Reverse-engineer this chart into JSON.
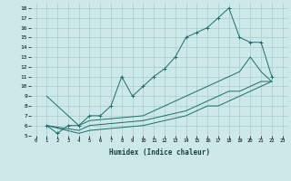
{
  "xlabel": "Humidex (Indice chaleur)",
  "background_color": "#cce8e8",
  "grid_color": "#aacccc",
  "line_color": "#1a6e6a",
  "xlim": [
    -0.5,
    23.5
  ],
  "ylim": [
    5,
    18.5
  ],
  "xticks": [
    0,
    1,
    2,
    3,
    4,
    5,
    6,
    7,
    8,
    9,
    10,
    11,
    12,
    13,
    14,
    15,
    16,
    17,
    18,
    19,
    20,
    21,
    22,
    23
  ],
  "yticks": [
    5,
    6,
    7,
    8,
    9,
    10,
    11,
    12,
    13,
    14,
    15,
    16,
    17,
    18
  ],
  "lines": [
    {
      "x": [
        1,
        2,
        3,
        4,
        5,
        6,
        7,
        8,
        9,
        10,
        11,
        12,
        13,
        14,
        15,
        16,
        17,
        18,
        19,
        20,
        21,
        22
      ],
      "y": [
        6,
        5.2,
        6,
        6,
        7,
        7,
        8,
        11,
        9,
        10,
        11,
        11.8,
        13,
        15,
        15.5,
        16,
        17,
        18,
        15,
        14.5,
        14.5,
        11
      ],
      "marker": true
    },
    {
      "x": [
        1,
        4,
        5,
        10,
        14,
        15,
        16,
        17,
        18,
        19,
        20,
        21,
        22
      ],
      "y": [
        9,
        6,
        6.5,
        7,
        9,
        9.5,
        10,
        10.5,
        11,
        11.5,
        13,
        11.5,
        10.5
      ],
      "marker": false
    },
    {
      "x": [
        1,
        4,
        5,
        10,
        14,
        15,
        16,
        17,
        18,
        19,
        20,
        21,
        22
      ],
      "y": [
        6,
        5.5,
        6,
        6.5,
        7.5,
        8,
        8.5,
        9,
        9.5,
        9.5,
        10,
        10.5,
        10.5
      ],
      "marker": false
    },
    {
      "x": [
        1,
        4,
        5,
        10,
        14,
        15,
        16,
        17,
        18,
        19,
        20,
        21,
        22
      ],
      "y": [
        6,
        5.2,
        5.5,
        6,
        7,
        7.5,
        8,
        8,
        8.5,
        9,
        9.5,
        10,
        10.5
      ],
      "marker": false
    }
  ]
}
